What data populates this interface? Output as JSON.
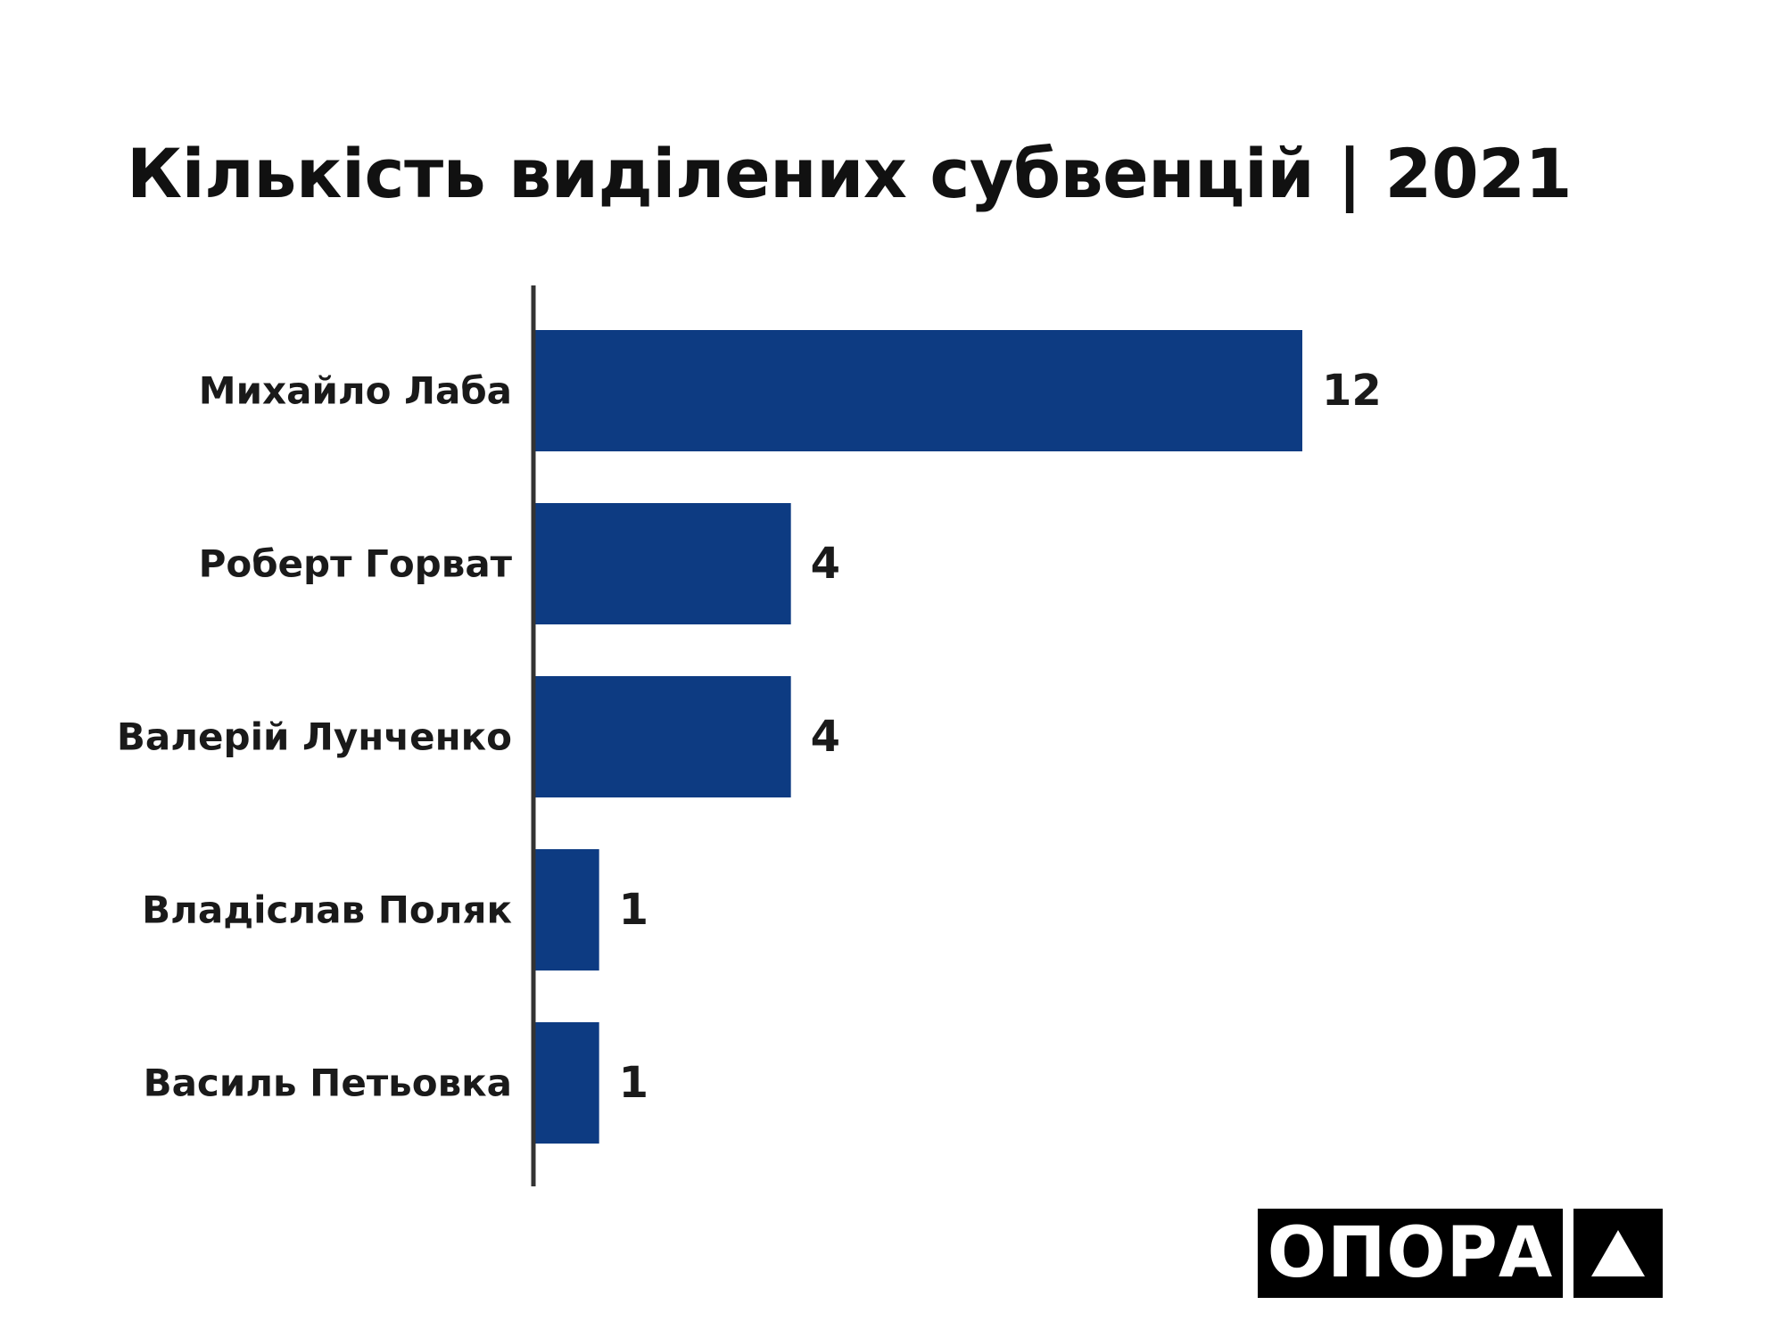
{
  "title": "Кількість виділених субвенцій | 2021",
  "logo": {
    "text": "ОПОРА"
  },
  "colors": {
    "bar": "#0d3b82",
    "axis": "#333333",
    "text": "#1a1a1a",
    "logo_bg": "#000000"
  },
  "chart_data": {
    "type": "bar",
    "orientation": "horizontal",
    "title": "Кількість виділених субвенцій | 2021",
    "categories": [
      "Михайло Лаба",
      "Роберт Горват",
      "Валерій Лунченко",
      "Владіслав Поляк",
      "Василь Петьовка"
    ],
    "values": [
      12,
      4,
      4,
      1,
      1
    ],
    "xlabel": "",
    "ylabel": "",
    "xlim": [
      0,
      12
    ],
    "grid": false,
    "data_labels": true
  }
}
